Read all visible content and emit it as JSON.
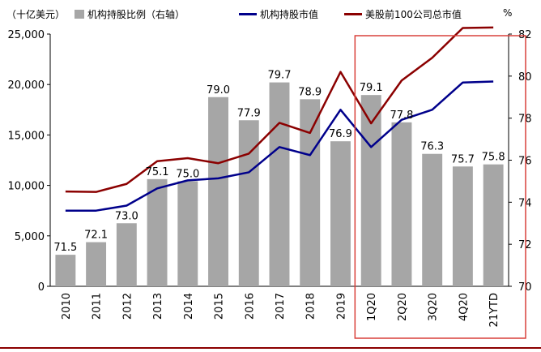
{
  "legend": {
    "unit": "（十亿美元）",
    "bar_label": "机构持股比例（右轴）",
    "line1_label": "机构持股市值",
    "line2_label": "美股前100公司总市值",
    "right_unit": "%"
  },
  "colors": {
    "bar": "#a6a6a6",
    "line1": "#00008b",
    "line2": "#8b0000",
    "highlight_box": "#d9413b"
  },
  "chart_data": {
    "type": "bar+line",
    "categories": [
      "2010",
      "2011",
      "2012",
      "2013",
      "2014",
      "2015",
      "2016",
      "2017",
      "2018",
      "2019",
      "1Q20",
      "2Q20",
      "3Q20",
      "4Q20",
      "21YTD"
    ],
    "left_axis": {
      "min": 0,
      "max": 25000,
      "ticks": [
        "0",
        "5,000",
        "10,000",
        "15,000",
        "20,000",
        "25,000"
      ],
      "tick_values": [
        0,
        5000,
        10000,
        15000,
        20000,
        25000
      ]
    },
    "right_axis": {
      "min": 70,
      "max": 82,
      "unit": "%",
      "ticks": [
        "70",
        "72",
        "74",
        "76",
        "78",
        "80",
        "82"
      ],
      "tick_values": [
        70,
        72,
        74,
        76,
        78,
        80,
        82
      ]
    },
    "bar_series": {
      "name": "机构持股比例（右轴）",
      "axis": "right",
      "values": [
        71.5,
        72.1,
        73.0,
        75.1,
        75.0,
        79.0,
        77.9,
        79.7,
        78.9,
        76.9,
        79.1,
        77.8,
        76.3,
        75.7,
        75.8
      ],
      "labels": [
        "71.5",
        "72.1",
        "73.0",
        "75.1",
        "75.0",
        "79.0",
        "77.9",
        "79.7",
        "78.9",
        "76.9",
        "79.1",
        "77.8",
        "76.3",
        "75.7",
        "75.8"
      ]
    },
    "line_series": [
      {
        "name": "机构持股市值",
        "axis": "left",
        "values": [
          7500,
          7500,
          8000,
          9700,
          10500,
          10700,
          11300,
          13800,
          13000,
          17500,
          13800,
          16500,
          17500,
          20200,
          20300
        ]
      },
      {
        "name": "美股前100公司总市值",
        "axis": "left",
        "values": [
          9400,
          9350,
          10150,
          12400,
          12700,
          12200,
          13150,
          16200,
          15200,
          21250,
          16150,
          20400,
          22650,
          25600,
          25650
        ]
      }
    ],
    "highlight": {
      "from": "1Q20",
      "to": "21YTD"
    }
  }
}
